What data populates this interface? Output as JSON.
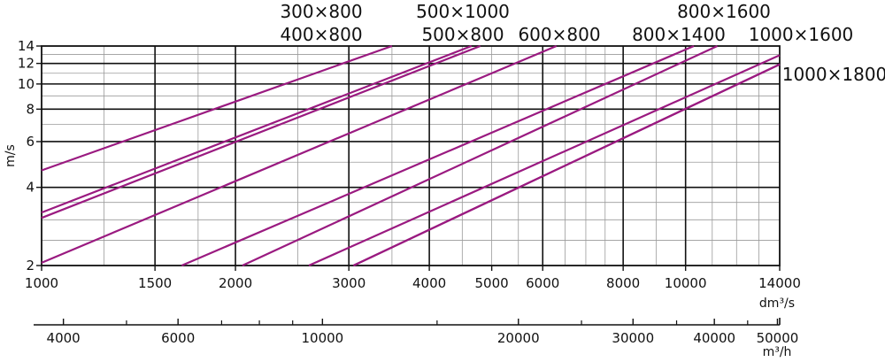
{
  "chart_data": {
    "type": "line",
    "title": "",
    "xlabel": "",
    "ylabel": "m/s",
    "x_unit": "dm³/s",
    "secondary_x_unit": "m³/h",
    "x_scale": "log",
    "y_scale": "log",
    "xlim": [
      1000,
      14000
    ],
    "ylim": [
      2,
      14
    ],
    "secondary_xlim": [
      3600,
      50400
    ],
    "grid": true,
    "line_color": "#9a1a80",
    "x_ticks": [
      {
        "value": 1000,
        "label": "1000"
      },
      {
        "value": 1500,
        "label": "1500"
      },
      {
        "value": 2000,
        "label": "2000"
      },
      {
        "value": 3000,
        "label": "3000"
      },
      {
        "value": 4000,
        "label": "4000"
      },
      {
        "value": 5000,
        "label": "5000"
      },
      {
        "value": 6000,
        "label": "6000"
      },
      {
        "value": 8000,
        "label": "8000"
      },
      {
        "value": 10000,
        "label": "10000"
      },
      {
        "value": 14000,
        "label": "14000"
      }
    ],
    "x_major_grid": [
      1500,
      2000,
      3000,
      4000,
      6000,
      8000,
      10000
    ],
    "x_minor_grid": [
      1250,
      1750,
      2500,
      3500,
      4500,
      5000,
      5500,
      6500,
      7000,
      7500,
      9000,
      11000,
      12000,
      13000
    ],
    "y_ticks": [
      {
        "value": 2,
        "label": "2"
      },
      {
        "value": 4,
        "label": "4"
      },
      {
        "value": 6,
        "label": "6"
      },
      {
        "value": 8,
        "label": "8"
      },
      {
        "value": 10,
        "label": "10"
      },
      {
        "value": 12,
        "label": "12"
      },
      {
        "value": 14,
        "label": "14"
      }
    ],
    "y_major_grid": [
      4,
      6,
      8,
      10,
      12
    ],
    "y_minor_grid": [
      2.5,
      3,
      3.5,
      5,
      7,
      9,
      11,
      13
    ],
    "secondary_ticks": [
      {
        "value": 4000,
        "label": "4000"
      },
      {
        "value": 6000,
        "label": "6000"
      },
      {
        "value": 10000,
        "label": "10000"
      },
      {
        "value": 20000,
        "label": "20000"
      },
      {
        "value": 30000,
        "label": "30000"
      },
      {
        "value": 40000,
        "label": "40000"
      },
      {
        "value": 50000,
        "label": "50000"
      }
    ],
    "secondary_minor_ticks": [
      5000,
      7000,
      8000,
      9000,
      15000,
      25000,
      35000,
      45000
    ],
    "series": [
      {
        "name": "300×800",
        "x": [
          1000,
          3500
        ],
        "y": [
          4.65,
          14
        ]
      },
      {
        "name": "400×800",
        "x": [
          1000,
          4650
        ],
        "y": [
          3.2,
          14
        ]
      },
      {
        "name": "500×800",
        "x": [
          1000,
          4800
        ],
        "y": [
          3.05,
          14
        ]
      },
      {
        "name": "500×1000",
        "x": [
          1000,
          6300
        ],
        "y": [
          2.05,
          14
        ]
      },
      {
        "name": "600×800",
        "x": [
          1650,
          10300
        ],
        "y": [
          2,
          14
        ]
      },
      {
        "name": "800×1400",
        "x": [
          2050,
          11200
        ],
        "y": [
          2,
          14
        ]
      },
      {
        "name": "800×1600",
        "x": [
          2600,
          14000
        ],
        "y": [
          2,
          12.9
        ]
      },
      {
        "name": "1000×1600",
        "x": [
          3050,
          14000
        ],
        "y": [
          2,
          11.9
        ]
      },
      {
        "name": "1000×1800",
        "x": [
          3050,
          14000
        ],
        "y": [
          2,
          11.9
        ]
      }
    ],
    "series_labels_shown": [
      "300×800",
      "400×800",
      "500×1000",
      "500×800",
      "600×800",
      "800×1400",
      "800×1600",
      "1000×1600",
      "1000×1800"
    ]
  }
}
